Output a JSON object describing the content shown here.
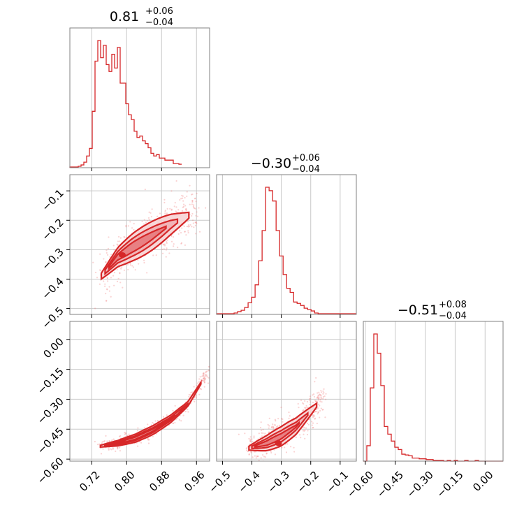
{
  "chart_data": {
    "type": "corner",
    "parameters": [
      {
        "id": "p0",
        "title": "0.81",
        "title_plus": "+0.06",
        "title_minus": "−0.04",
        "range": [
          0.67,
          0.99
        ],
        "ticks": [
          0.72,
          0.8,
          0.88,
          0.96
        ],
        "tick_labels": [
          "0.72",
          "0.80",
          "0.88",
          "0.96"
        ],
        "hist_edges_start": 0.67,
        "hist_bin_width": 0.0064,
        "hist_counts": [
          1,
          1,
          1,
          2,
          4,
          8,
          17,
          28,
          82,
          155,
          185,
          160,
          178,
          150,
          140,
          165,
          145,
          175,
          123,
          123,
          93,
          77,
          70,
          53,
          44,
          46,
          39,
          35,
          29,
          21,
          17,
          19,
          14,
          14,
          11,
          11,
          11,
          6,
          6,
          5
        ]
      },
      {
        "id": "p1",
        "title": "−0.30",
        "title_plus": "+0.06",
        "title_minus": "−0.04",
        "range": [
          -0.52,
          -0.045
        ],
        "ticks": [
          -0.1,
          -0.2,
          -0.3,
          -0.4,
          -0.5
        ],
        "tick_labels": [
          "−0.1",
          "−0.2",
          "−0.3",
          "−0.4",
          "−0.5"
        ],
        "x_ticks": [
          -0.5,
          -0.4,
          -0.3,
          -0.2,
          -0.1
        ],
        "x_tick_labels": [
          "−0.5",
          "−0.4",
          "−0.3",
          "−0.2",
          "−0.1"
        ],
        "hist_edges_start": -0.52,
        "hist_bin_width": 0.0119,
        "hist_counts": [
          1,
          1,
          1,
          1,
          1,
          2,
          4,
          6,
          10,
          17,
          25,
          43,
          78,
          122,
          185,
          180,
          165,
          122,
          85,
          58,
          38,
          32,
          18,
          16,
          13,
          9,
          7,
          5,
          2,
          1,
          1,
          1,
          1,
          1,
          1,
          1,
          1,
          1,
          1,
          1
        ]
      },
      {
        "id": "p2",
        "title": "−0.51",
        "title_plus": "+0.08",
        "title_minus": "−0.04",
        "range": [
          -0.61,
          0.09
        ],
        "ticks": [
          -0.6,
          -0.45,
          -0.3,
          -0.15,
          0.0
        ],
        "tick_labels": [
          "−0.60",
          "−0.45",
          "−0.30",
          "−0.15",
          "0.00"
        ],
        "hist_edges_start": -0.61,
        "hist_bin_width": 0.0175,
        "hist_counts": [
          0,
          20,
          95,
          165,
          140,
          98,
          45,
          35,
          26,
          18,
          15,
          9,
          8,
          7,
          4,
          4,
          3,
          3,
          2,
          2,
          1,
          1,
          1,
          0,
          1,
          0,
          1,
          0,
          0,
          1,
          0,
          0,
          1,
          0,
          0,
          0,
          0,
          0,
          0,
          0
        ]
      }
    ],
    "joint_2d": [
      {
        "x_param": "p0",
        "y_param": "p1",
        "curve": [
          [
            0.742,
            -0.39
          ],
          [
            0.78,
            -0.325
          ],
          [
            0.81,
            -0.295
          ],
          [
            0.85,
            -0.26
          ],
          [
            0.9,
            -0.215
          ],
          [
            0.96,
            -0.17
          ]
        ],
        "band_widths": [
          0.022,
          0.036,
          0.05
        ],
        "density_peak": [
          0.79,
          -0.318
        ],
        "scatter_spread": [
          0.03,
          0.035
        ]
      },
      {
        "x_param": "p0",
        "y_param": "p2",
        "curve": [
          [
            0.74,
            -0.535
          ],
          [
            0.78,
            -0.52
          ],
          [
            0.82,
            -0.495
          ],
          [
            0.86,
            -0.455
          ],
          [
            0.9,
            -0.4
          ],
          [
            0.94,
            -0.325
          ],
          [
            0.99,
            -0.15
          ]
        ],
        "band_widths": [
          0.008,
          0.014,
          0.022
        ],
        "density_peak": [
          0.79,
          -0.515
        ],
        "scatter_spread": [
          0.02,
          0.015
        ]
      },
      {
        "x_param": "p1",
        "y_param": "p2",
        "curve": [
          [
            -0.41,
            -0.545
          ],
          [
            -0.35,
            -0.52
          ],
          [
            -0.3,
            -0.485
          ],
          [
            -0.25,
            -0.435
          ],
          [
            -0.2,
            -0.36
          ],
          [
            -0.16,
            -0.3
          ]
        ],
        "band_widths": [
          0.018,
          0.032,
          0.048
        ],
        "density_peak": [
          -0.31,
          -0.52
        ],
        "scatter_spread": [
          0.035,
          0.04
        ]
      }
    ],
    "grid": true,
    "colors": {
      "main": "#d62728",
      "fill": "#f2b8b9",
      "scatter": "#f08080",
      "frame": "#808080",
      "grid": "#c8c8c8"
    }
  }
}
